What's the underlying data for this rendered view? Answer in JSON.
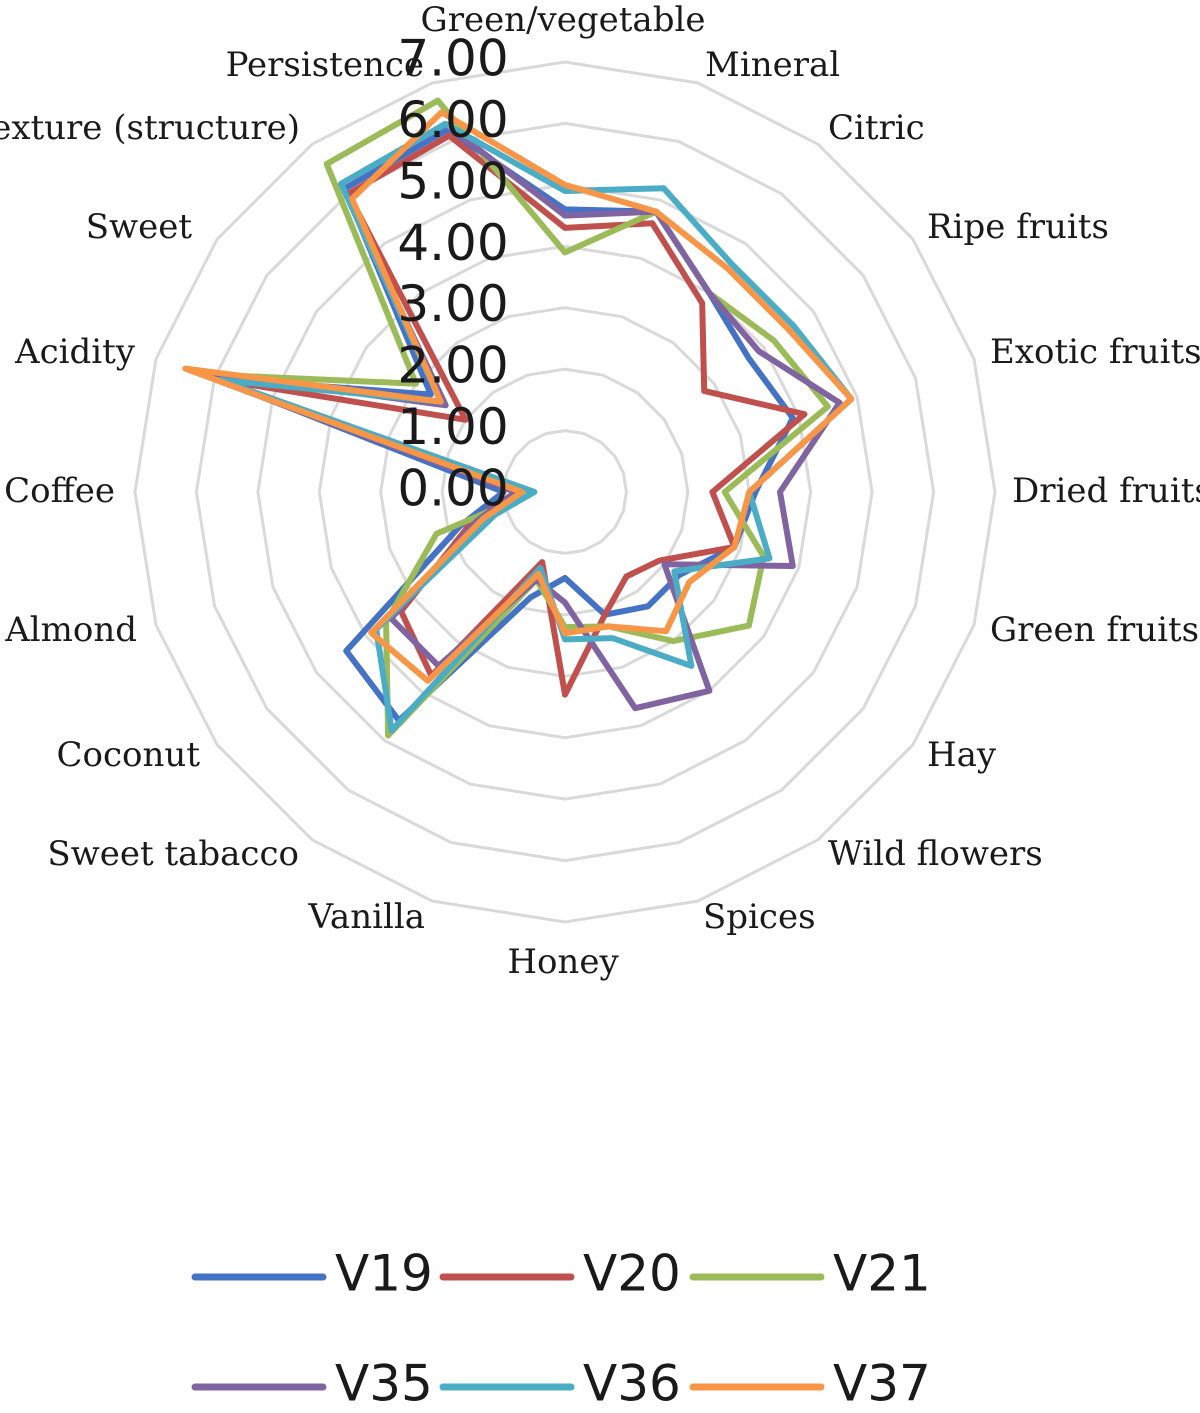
{
  "chart_data": {
    "type": "radar",
    "title": "",
    "axes": [
      "Green/vegetable",
      "Mineral",
      "Citric",
      "Ripe fruits",
      "Exotic fruits",
      "Dried fruits",
      "Green fruits",
      "Hay",
      "Wild flowers",
      "Spices",
      "Honey",
      "Vanilla",
      "Sweet tabacco",
      "Coconut",
      "Almond",
      "Coffee",
      "Acidity",
      "Sweet",
      "Texture (structure)",
      "Persistence"
    ],
    "ticks": [
      "0.00",
      "1.00",
      "2.00",
      "3.00",
      "4.00",
      "5.00",
      "6.00",
      "7.00"
    ],
    "range": [
      0,
      7
    ],
    "grid": true,
    "legend_position": "bottom",
    "series": [
      {
        "name": "V19",
        "color": "#4472C4",
        "values": [
          4.6,
          4.8,
          4.0,
          3.7,
          3.9,
          3.1,
          2.9,
          2.3,
          2.3,
          2.1,
          1.4,
          1.8,
          4.6,
          4.4,
          1.8,
          1.0,
          6.0,
          2.7,
          6.1,
          6.2
        ]
      },
      {
        "name": "V20",
        "color": "#C0504D",
        "values": [
          4.3,
          4.6,
          3.8,
          2.8,
          4.1,
          2.4,
          2.9,
          1.9,
          1.7,
          2.1,
          3.3,
          1.2,
          3.7,
          3.3,
          1.6,
          0.8,
          5.9,
          2.0,
          6.0,
          6.1
        ]
      },
      {
        "name": "V21",
        "color": "#9BBB59",
        "values": [
          3.9,
          4.8,
          4.0,
          4.2,
          4.5,
          2.6,
          3.4,
          3.7,
          3.0,
          2.3,
          2.2,
          1.5,
          4.9,
          3.6,
          2.2,
          0.5,
          6.2,
          3.0,
          6.6,
          6.7
        ]
      },
      {
        "name": "V35",
        "color": "#8064A2",
        "values": [
          4.5,
          4.8,
          4.0,
          3.9,
          4.7,
          3.5,
          3.9,
          2.0,
          4.0,
          3.7,
          1.8,
          1.5,
          3.5,
          3.5,
          1.5,
          0.8,
          6.4,
          2.4,
          6.2,
          6.3
        ]
      },
      {
        "name": "V36",
        "color": "#4BACC6",
        "values": [
          4.9,
          5.2,
          4.6,
          4.6,
          4.9,
          3.0,
          3.5,
          2.2,
          3.5,
          2.5,
          2.4,
          1.3,
          4.8,
          3.8,
          1.2,
          0.5,
          5.9,
          2.5,
          6.2,
          6.3
        ]
      },
      {
        "name": "V37",
        "color": "#F79646",
        "values": [
          5.0,
          4.8,
          4.5,
          4.5,
          4.9,
          3.0,
          2.9,
          2.5,
          2.8,
          2.3,
          2.3,
          1.4,
          3.8,
          3.9,
          1.4,
          0.7,
          6.5,
          2.5,
          5.9,
          6.5
        ]
      }
    ]
  }
}
